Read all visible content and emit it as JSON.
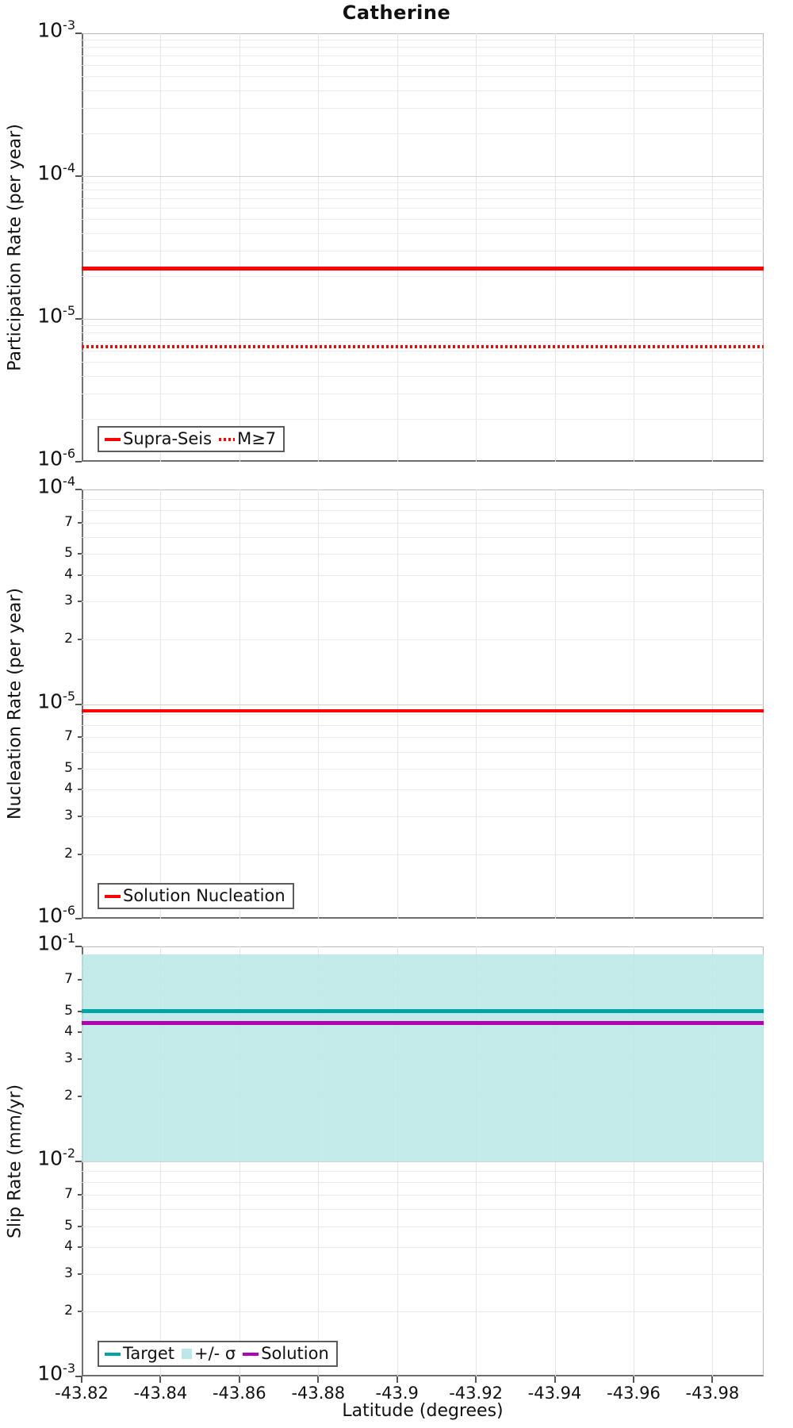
{
  "title": "Catherine",
  "x_axis": {
    "label": "Latitude (degrees)",
    "lim": [
      -43.82,
      -43.993
    ],
    "ticks": [
      -43.82,
      -43.84,
      -43.86,
      -43.88,
      -43.9,
      -43.92,
      -43.94,
      -43.96,
      -43.98
    ],
    "tick_labels": [
      "-43.82",
      "-43.84",
      "-43.86",
      "-43.88",
      "-43.9",
      "-43.92",
      "-43.94",
      "-43.96",
      "-43.98"
    ]
  },
  "minor_labels_shown": [
    "7",
    "5",
    "4",
    "3",
    "2"
  ],
  "colors": {
    "red": "#ff0000",
    "teal": "#00a4a4",
    "magenta": "#b200b2",
    "band": "#bce7e7",
    "text": "#111111"
  },
  "chart_data": [
    {
      "type": "line",
      "panel": "participation-rate",
      "ylabel": "Participation Rate (per year)",
      "yscale": "log",
      "ylim": [
        1e-06,
        0.001
      ],
      "grid": true,
      "minor_tick_labels": false,
      "series": [
        {
          "name": "Supra-Seis",
          "style": "solid",
          "color_key": "red",
          "y_constant": 2.25e-05
        },
        {
          "name": "M≥7",
          "style": "dotted",
          "color_key": "red",
          "y_constant": 6.4e-06
        }
      ],
      "legend": [
        {
          "label": "Supra-Seis",
          "swatch": "solid",
          "color_key": "red"
        },
        {
          "label": "M≥7",
          "swatch": "dotted",
          "color_key": "red"
        }
      ],
      "legend_position": "bottom-left"
    },
    {
      "type": "line",
      "panel": "nucleation-rate",
      "ylabel": "Nucleation Rate (per year)",
      "yscale": "log",
      "ylim": [
        1e-06,
        0.0001
      ],
      "grid": true,
      "minor_tick_labels": true,
      "series": [
        {
          "name": "Solution Nucleation",
          "style": "solid",
          "color_key": "red",
          "y_constant": 9.3e-06
        }
      ],
      "legend": [
        {
          "label": "Solution Nucleation",
          "swatch": "solid",
          "color_key": "red"
        }
      ],
      "legend_position": "bottom-left"
    },
    {
      "type": "line+band",
      "panel": "slip-rate",
      "ylabel": "Slip Rate (mm/yr)",
      "yscale": "log",
      "ylim": [
        0.001,
        0.1
      ],
      "grid": true,
      "minor_tick_labels": true,
      "band": {
        "name": "+/- σ",
        "lo": 0.01,
        "hi": 0.092,
        "color_key": "band"
      },
      "series": [
        {
          "name": "Target",
          "style": "solid",
          "color_key": "teal",
          "y_constant": 0.05
        },
        {
          "name": "Solution",
          "style": "solid",
          "color_key": "magenta",
          "y_constant": 0.044
        }
      ],
      "legend": [
        {
          "label": "Target",
          "swatch": "solid",
          "color_key": "teal"
        },
        {
          "label": "+/- σ",
          "swatch": "patch",
          "color_key": "band"
        },
        {
          "label": "Solution",
          "swatch": "solid",
          "color_key": "magenta"
        }
      ],
      "legend_position": "bottom-left"
    }
  ]
}
